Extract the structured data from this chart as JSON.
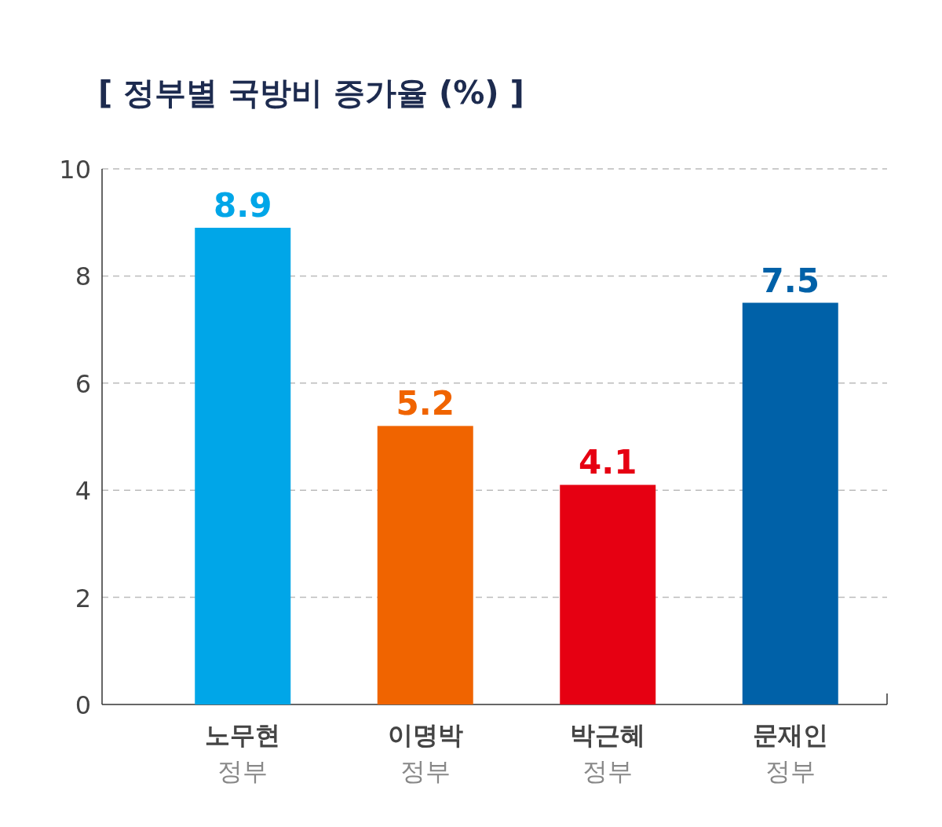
{
  "chart_data": {
    "type": "bar",
    "title": "[ 정부별 국방비 증가율 (%) ]",
    "categories": [
      "노무현\n정부",
      "이명박\n정부",
      "박근혜\n정부",
      "문재인\n정부"
    ],
    "values": [
      8.9,
      5.2,
      4.1,
      7.5
    ],
    "colors": [
      "#00a6e8",
      "#f06400",
      "#e60012",
      "#0061a8"
    ],
    "ylim": [
      0,
      10
    ],
    "yticks": [
      0,
      2,
      4,
      6,
      8,
      10
    ],
    "grid": "y",
    "data_labels": true
  }
}
